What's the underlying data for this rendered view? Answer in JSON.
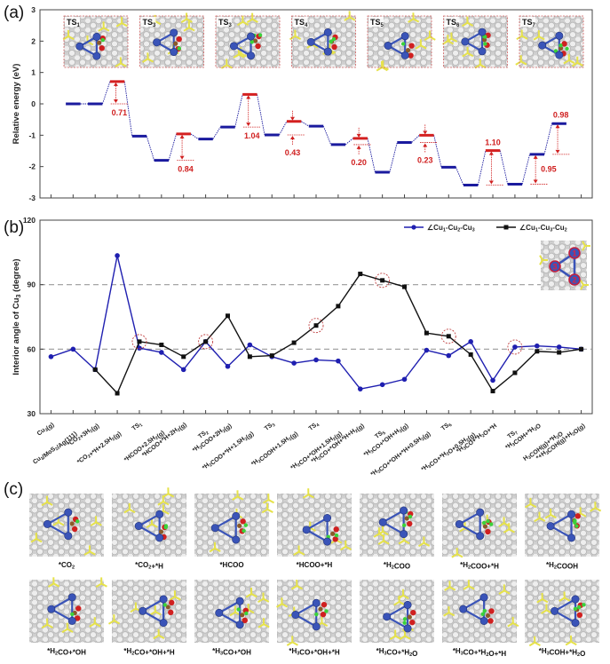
{
  "colors": {
    "ground_state": "#1a1a9e",
    "transition_state": "#d42020",
    "barrier_annotation": "#d02020",
    "series_a": "#1f1fb0",
    "series_b": "#111111",
    "ref_line": "#999999",
    "cu_atom": "#3a54b8",
    "o_atom": "#d02020",
    "c_atom": "#8a5a2a",
    "h_atom": "#3ad23a",
    "substrate": "#c8c8c8",
    "s_atom": "#e6e24a"
  },
  "panels": {
    "a": {
      "label": "(a)"
    },
    "b": {
      "label": "(b)"
    },
    "c": {
      "label": "(c)"
    }
  },
  "chart_data": [
    {
      "id": "energy_profile",
      "type": "line",
      "title": "",
      "xlabel": "",
      "ylabel": "Relative energy (eV)",
      "ylim": [
        -3,
        3
      ],
      "yticks": [
        -3,
        -2,
        -1,
        0,
        1,
        2,
        3
      ],
      "grid": false,
      "n_positions": 24,
      "levels": [
        {
          "pos": 1,
          "energy": 0.0,
          "kind": "ground"
        },
        {
          "pos": 2,
          "energy": 0.0,
          "kind": "ground"
        },
        {
          "pos": 3,
          "energy": 0.71,
          "kind": "ts"
        },
        {
          "pos": 4,
          "energy": -1.03,
          "kind": "ground"
        },
        {
          "pos": 5,
          "energy": -1.8,
          "kind": "ground"
        },
        {
          "pos": 6,
          "energy": -0.96,
          "kind": "ts"
        },
        {
          "pos": 7,
          "energy": -1.12,
          "kind": "ground"
        },
        {
          "pos": 8,
          "energy": -0.74,
          "kind": "ground"
        },
        {
          "pos": 9,
          "energy": 0.3,
          "kind": "ts"
        },
        {
          "pos": 10,
          "energy": -0.99,
          "kind": "ground"
        },
        {
          "pos": 11,
          "energy": -0.56,
          "kind": "ts"
        },
        {
          "pos": 12,
          "energy": -0.71,
          "kind": "ground"
        },
        {
          "pos": 13,
          "energy": -1.3,
          "kind": "ground"
        },
        {
          "pos": 14,
          "energy": -1.1,
          "kind": "ts"
        },
        {
          "pos": 15,
          "energy": -2.18,
          "kind": "ground"
        },
        {
          "pos": 16,
          "energy": -1.23,
          "kind": "ground"
        },
        {
          "pos": 17,
          "energy": -1.0,
          "kind": "ts"
        },
        {
          "pos": 18,
          "energy": -2.02,
          "kind": "ground"
        },
        {
          "pos": 19,
          "energy": -2.59,
          "kind": "ground"
        },
        {
          "pos": 20,
          "energy": -1.49,
          "kind": "ts"
        },
        {
          "pos": 21,
          "energy": -2.56,
          "kind": "ground"
        },
        {
          "pos": 22,
          "energy": -1.61,
          "kind": "ground"
        },
        {
          "pos": 23,
          "energy": -0.63,
          "kind": "ground"
        }
      ],
      "barriers": [
        {
          "from_pos": 2,
          "to_pos": 3,
          "value": "0.71",
          "style": "up"
        },
        {
          "from_pos": 5,
          "to_pos": 6,
          "value": "0.84",
          "style": "up"
        },
        {
          "from_pos": 8,
          "to_pos": 9,
          "value": "1.04",
          "style": "up"
        },
        {
          "from_pos": 10,
          "to_pos": 11,
          "value": "0.43",
          "style": "pinch"
        },
        {
          "from_pos": 13,
          "to_pos": 14,
          "value": "0.20",
          "style": "pinch"
        },
        {
          "from_pos": 16,
          "to_pos": 17,
          "value": "0.23",
          "style": "pinch"
        },
        {
          "from_pos": 19,
          "to_pos": 20,
          "value": "1.10",
          "style": "up"
        },
        {
          "from_pos": 21,
          "to_pos": 22,
          "value": "0.95",
          "style": "up"
        },
        {
          "from_pos": 22,
          "to_pos": 23,
          "value": "0.98",
          "style": "up"
        }
      ],
      "ts_insets": [
        {
          "label": "TS",
          "sub": "1"
        },
        {
          "label": "TS",
          "sub": "3"
        },
        {
          "label": "TS",
          "sub": "3"
        },
        {
          "label": "TS",
          "sub": "4"
        },
        {
          "label": "TS",
          "sub": "5"
        },
        {
          "label": "TS",
          "sub": "6"
        },
        {
          "label": "TS",
          "sub": "7"
        }
      ]
    },
    {
      "id": "interior_angles",
      "type": "line",
      "title": "",
      "xlabel": "",
      "ylabel": "Interior angle of Cu3 (degree)",
      "ylabel_parts": {
        "main": "Interior angle of Cu",
        "sub": "3",
        "tail": " (degree)"
      },
      "ylim": [
        30,
        120
      ],
      "yticks": [
        30,
        60,
        90,
        120
      ],
      "reference_lines": [
        60,
        90
      ],
      "grid": false,
      "legend_position": "top-right",
      "categories": [
        "Cu3(g)",
        "Cu3/MoS2/Ag(111)",
        "*CO2+3H2(g)",
        "*CO2+*H+2.5H2(g)",
        "TS1",
        "*HCOO+2.5H2(g)",
        "*HCOO+*H+2H2(g)",
        "TS2",
        "*H2COO+2H2(g)",
        "*H2COO+*H+1.5H2(g)",
        "TS3",
        "*H2COOH+1.5H2(g)",
        "TS4",
        "*H2CO+*OH+1.5H2(g)",
        "*H2CO+*OH+*H+H2(g)",
        "TS5",
        "*H3CO+*OH+H2(g)",
        "*H3CO+*OH+*H+0.5H2(g)",
        "TS6",
        "*H3CO+*H2O+0.5H2(g)",
        "*H3CO+*H2O+*H",
        "TS7",
        "*H3COH+*H2O",
        "H3COH(g)+*H2O",
        "*+H3COH(g)+H2O(g)"
      ],
      "series": [
        {
          "name": "∠Cu1-Cu2-Cu3",
          "marker": "circle",
          "values": [
            56.5,
            60,
            50.5,
            103.5,
            60.5,
            58.5,
            50.5,
            63.5,
            52,
            62,
            56.5,
            53.5,
            55,
            54.5,
            41.5,
            43.5,
            46,
            59.5,
            57,
            63.5,
            45.5,
            61,
            61.5,
            61,
            60
          ]
        },
        {
          "name": "∠Cu1-Cu3-Cu2",
          "marker": "square",
          "values": [
            null,
            null,
            50.5,
            39.5,
            63.5,
            62,
            56.5,
            63.5,
            75.5,
            56.5,
            57,
            63,
            71,
            80,
            95,
            92,
            89,
            67.5,
            66,
            57.5,
            40.5,
            49,
            59,
            58.5,
            60
          ]
        }
      ],
      "highlighted_points": [
        4,
        7,
        12,
        15,
        18,
        21
      ],
      "legend": [
        {
          "main": "∠Cu",
          "s1": "1",
          "m2": "-Cu",
          "s2": "2",
          "m3": "-Cu",
          "s3": "3"
        },
        {
          "main": "∠Cu",
          "s1": "1",
          "m2": "-Cu",
          "s2": "3",
          "m3": "-Cu",
          "s3": "2"
        }
      ],
      "inset_atom_labels": [
        "1",
        "2",
        "3"
      ]
    }
  ],
  "structures": {
    "row1": [
      {
        "label": "*CO₂"
      },
      {
        "label": "*CO₂+*H"
      },
      {
        "label": "*HCOO"
      },
      {
        "label": "*HCOO+*H"
      },
      {
        "label": "*H₂COO"
      },
      {
        "label": "*H₂COO+*H"
      },
      {
        "label": "*H₂COOH"
      }
    ],
    "row2": [
      {
        "label": "*H₂CO+*OH"
      },
      {
        "label": "*H₂CO+*OH+*H"
      },
      {
        "label": "*H₃CO+*OH"
      },
      {
        "label": "*H₃CO+*OH+*H"
      },
      {
        "label": "*H₃CO+*H₂O"
      },
      {
        "label": "*H₃CO+*H₂O+*H"
      },
      {
        "label": "*H₃COH+*H₂O"
      }
    ]
  }
}
